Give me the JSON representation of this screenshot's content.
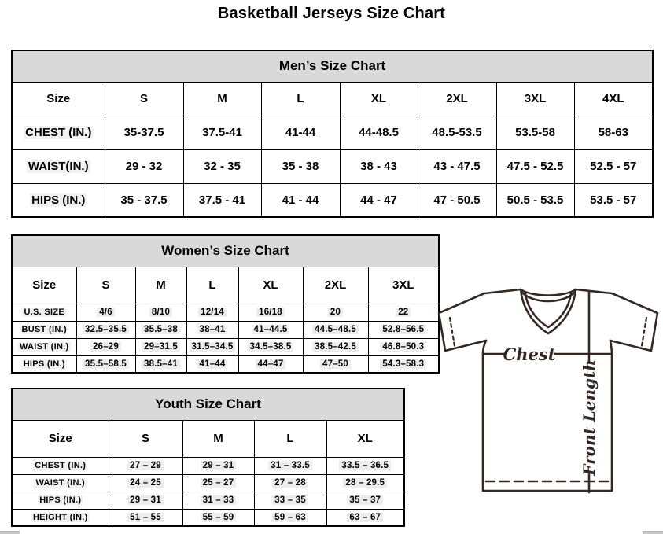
{
  "page_title": "Basketball Jerseys Size Chart",
  "mens_chart": {
    "title": "Men’s Size Chart",
    "columns": [
      "Size",
      "S",
      "M",
      "L",
      "XL",
      "2XL",
      "3XL",
      "4XL"
    ],
    "rows": [
      {
        "label": "CHEST (IN.)",
        "values": [
          "35-37.5",
          "37.5-41",
          "41-44",
          "44-48.5",
          "48.5-53.5",
          "53.5-58",
          "58-63"
        ]
      },
      {
        "label": "WAIST(IN.)",
        "values": [
          "29 - 32",
          "32 - 35",
          "35 - 38",
          "38 - 43",
          "43 - 47.5",
          "47.5 - 52.5",
          "52.5 - 57"
        ]
      },
      {
        "label": "HIPS (IN.)",
        "values": [
          "35 - 37.5",
          "37.5 - 41",
          "41 - 44",
          "44 - 47",
          "47 - 50.5",
          "50.5 - 53.5",
          "53.5 - 57"
        ]
      }
    ]
  },
  "womens_chart": {
    "title": "Women’s Size Chart",
    "columns": [
      "Size",
      "S",
      "M",
      "L",
      "XL",
      "2XL",
      "3XL"
    ],
    "rows": [
      {
        "label": "U.S. SIZE",
        "values": [
          "4/6",
          "8/10",
          "12/14",
          "16/18",
          "20",
          "22"
        ]
      },
      {
        "label": "BUST (IN.)",
        "values": [
          "32.5–35.5",
          "35.5–38",
          "38–41",
          "41–44.5",
          "44.5–48.5",
          "52.8–56.5"
        ]
      },
      {
        "label": "WAIST (IN.)",
        "values": [
          "26–29",
          "29–31.5",
          "31.5–34.5",
          "34.5–38.5",
          "38.5–42.5",
          "46.8–50.3"
        ]
      },
      {
        "label": "HIPS (IN.)",
        "values": [
          "35.5–58.5",
          "38.5–41",
          "41–44",
          "44–47",
          "47–50",
          "54.3–58.3"
        ]
      }
    ]
  },
  "youth_chart": {
    "title": "Youth Size Chart",
    "columns": [
      "Size",
      "S",
      "M",
      "L",
      "XL"
    ],
    "rows": [
      {
        "label": "CHEST (IN.)",
        "values": [
          "27 – 29",
          "29 – 31",
          "31 – 33.5",
          "33.5 – 36.5"
        ]
      },
      {
        "label": "WAIST (IN.)",
        "values": [
          "24 – 25",
          "25 – 27",
          "27 – 28",
          "28 – 29.5"
        ]
      },
      {
        "label": "HIPS (IN.)",
        "values": [
          "29 – 31",
          "31 – 33",
          "33 – 35",
          "35 – 37"
        ]
      },
      {
        "label": "HEIGHT (IN.)",
        "values": [
          "51 – 55",
          "55 – 59",
          "59 – 63",
          "63 – 67"
        ]
      }
    ]
  },
  "diagram": {
    "chest_label": "Chest",
    "front_length_label": "Front Length"
  },
  "colors": {
    "table_header_bg": "#d9d9d9",
    "table_border": "#000000",
    "jersey_outline": "#342823",
    "value_highlight": "#ededed",
    "scrollbar_thumb": "#c9c9c9"
  }
}
